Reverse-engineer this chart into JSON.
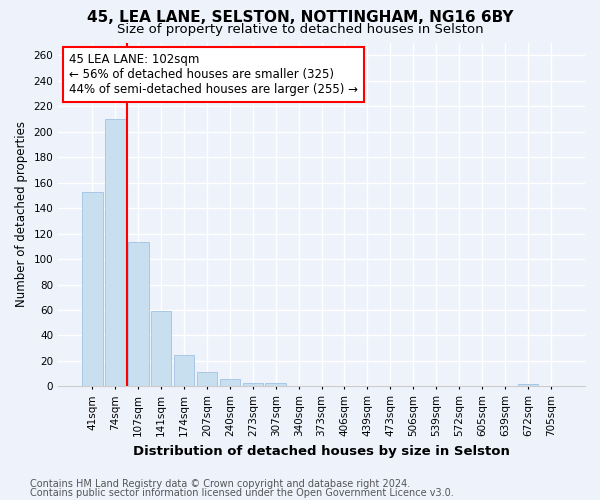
{
  "title": "45, LEA LANE, SELSTON, NOTTINGHAM, NG16 6BY",
  "subtitle": "Size of property relative to detached houses in Selston",
  "xlabel": "Distribution of detached houses by size in Selston",
  "ylabel": "Number of detached properties",
  "bar_labels": [
    "41sqm",
    "74sqm",
    "107sqm",
    "141sqm",
    "174sqm",
    "207sqm",
    "240sqm",
    "273sqm",
    "307sqm",
    "340sqm",
    "373sqm",
    "406sqm",
    "439sqm",
    "473sqm",
    "506sqm",
    "539sqm",
    "572sqm",
    "605sqm",
    "639sqm",
    "672sqm",
    "705sqm"
  ],
  "bar_values": [
    153,
    210,
    113,
    59,
    25,
    11,
    6,
    3,
    3,
    0,
    0,
    0,
    0,
    0,
    0,
    0,
    0,
    0,
    0,
    2,
    0
  ],
  "bar_color": "#c8dff0",
  "bar_edgecolor": "#a8c8e8",
  "vline_x": 1.5,
  "annotation_text": "45 LEA LANE: 102sqm\n← 56% of detached houses are smaller (325)\n44% of semi-detached houses are larger (255) →",
  "annotation_box_edgecolor": "red",
  "vline_color": "red",
  "ylim": [
    0,
    270
  ],
  "yticks": [
    0,
    20,
    40,
    60,
    80,
    100,
    120,
    140,
    160,
    180,
    200,
    220,
    240,
    260
  ],
  "footnote1": "Contains HM Land Registry data © Crown copyright and database right 2024.",
  "footnote2": "Contains public sector information licensed under the Open Government Licence v3.0.",
  "background_color": "#eef2fb",
  "plot_bg_color": "#eef2fb",
  "grid_color": "#ffffff",
  "title_fontsize": 11,
  "subtitle_fontsize": 9.5,
  "xlabel_fontsize": 9.5,
  "ylabel_fontsize": 8.5,
  "tick_fontsize": 7.5,
  "annotation_fontsize": 8.5,
  "footnote_fontsize": 7
}
